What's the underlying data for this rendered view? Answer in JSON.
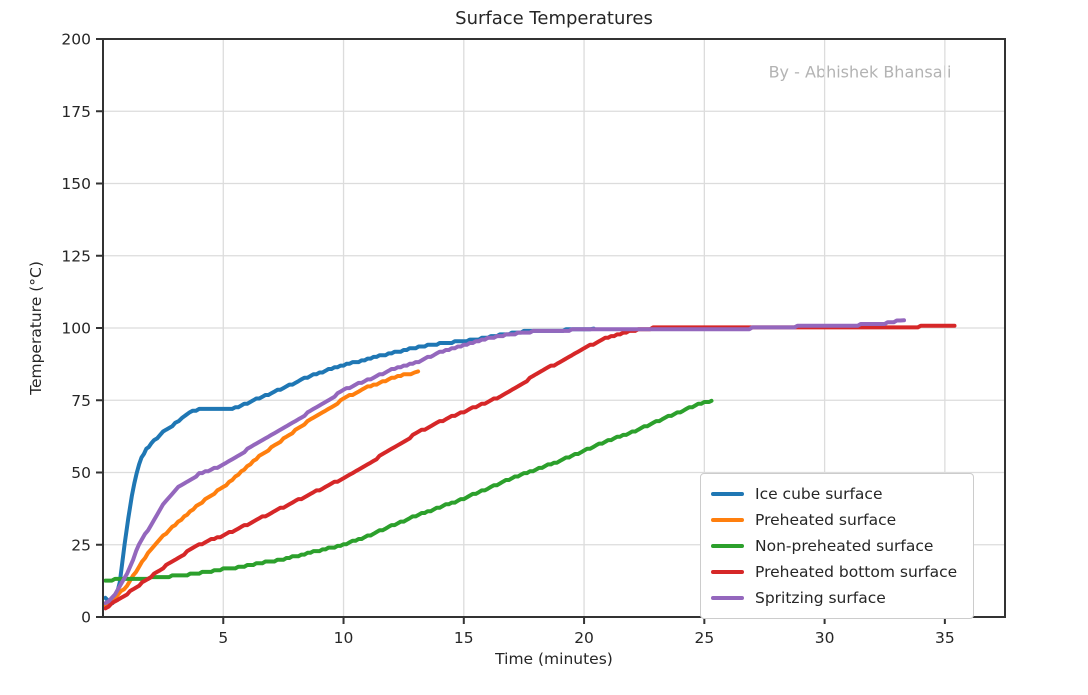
{
  "page_title": "Surface Temperatures",
  "colors": {
    "text": "#262626",
    "grid": "#dcdcdc",
    "spine": "#333333",
    "watermark": "#b3b3b3",
    "background": "#ffffff",
    "legend_border": "#cccccc"
  },
  "chart_data": {
    "type": "line",
    "title": "Surface Temperatures",
    "watermark": "By - Abhishek Bhansali",
    "xlabel": "Time (minutes)",
    "ylabel": "Temperature (°C)",
    "xlim": [
      0,
      37.5
    ],
    "ylim": [
      0,
      200
    ],
    "xticks": [
      5,
      10,
      15,
      20,
      25,
      30,
      35
    ],
    "yticks": [
      0,
      25,
      50,
      75,
      100,
      125,
      150,
      175,
      200
    ],
    "grid": true,
    "legend_position": "lower right",
    "series": [
      {
        "name": "Ice cube surface",
        "color": "#1f77b4",
        "points": [
          [
            0.1,
            6.8
          ],
          [
            0.25,
            5.2
          ],
          [
            0.4,
            5.0
          ],
          [
            0.55,
            7
          ],
          [
            0.7,
            12
          ],
          [
            0.9,
            25
          ],
          [
            1.05,
            34
          ],
          [
            1.2,
            42
          ],
          [
            1.4,
            50
          ],
          [
            1.6,
            55
          ],
          [
            1.8,
            58
          ],
          [
            2,
            60
          ],
          [
            2.5,
            64
          ],
          [
            3,
            67
          ],
          [
            3.3,
            69
          ],
          [
            3.6,
            71
          ],
          [
            4,
            71.8
          ],
          [
            4.5,
            72
          ],
          [
            5,
            72
          ],
          [
            5.5,
            72.3
          ],
          [
            6,
            74
          ],
          [
            6.5,
            75.8
          ],
          [
            7,
            77.5
          ],
          [
            7.5,
            79.2
          ],
          [
            8,
            81
          ],
          [
            8.5,
            83
          ],
          [
            9,
            84.5
          ],
          [
            9.5,
            86
          ],
          [
            10,
            87
          ],
          [
            10.5,
            88.2
          ],
          [
            11,
            89.3
          ],
          [
            11.5,
            90.3
          ],
          [
            12,
            91.3
          ],
          [
            12.5,
            92.3
          ],
          [
            13,
            93.2
          ],
          [
            13.5,
            94
          ],
          [
            14,
            94.6
          ],
          [
            14.5,
            95
          ],
          [
            15,
            95.4
          ],
          [
            15.5,
            96.1
          ],
          [
            16,
            96.8
          ],
          [
            16.5,
            97.5
          ],
          [
            17,
            98.2
          ],
          [
            17.5,
            98.7
          ],
          [
            18,
            99
          ],
          [
            18.5,
            99.1
          ],
          [
            19,
            99.2
          ],
          [
            19.5,
            99.4
          ],
          [
            20,
            99.5
          ],
          [
            20.4,
            99.8
          ]
        ]
      },
      {
        "name": "Preheated surface",
        "color": "#ff7f0e",
        "points": [
          [
            0.1,
            4
          ],
          [
            0.5,
            6.5
          ],
          [
            1,
            11
          ],
          [
            1.5,
            17.5
          ],
          [
            2,
            23.5
          ],
          [
            2.5,
            28
          ],
          [
            3,
            32
          ],
          [
            3.5,
            35.5
          ],
          [
            4,
            39
          ],
          [
            4.5,
            42
          ],
          [
            5,
            45
          ],
          [
            5.5,
            48.5
          ],
          [
            6,
            52
          ],
          [
            6.5,
            55.5
          ],
          [
            7,
            58.5
          ],
          [
            7.5,
            61.5
          ],
          [
            8,
            64.5
          ],
          [
            8.5,
            67.5
          ],
          [
            9,
            70
          ],
          [
            9.5,
            72.5
          ],
          [
            10,
            75.5
          ],
          [
            10.5,
            77.5
          ],
          [
            11,
            79.5
          ],
          [
            11.5,
            81
          ],
          [
            12,
            82.5
          ],
          [
            12.5,
            83.8
          ],
          [
            12.8,
            84.2
          ],
          [
            13.1,
            85
          ]
        ]
      },
      {
        "name": "Non-preheated surface",
        "color": "#2ca02c",
        "points": [
          [
            0.1,
            12.5
          ],
          [
            0.5,
            13
          ],
          [
            1,
            13
          ],
          [
            1.5,
            13.2
          ],
          [
            2,
            13.5
          ],
          [
            2.5,
            13.8
          ],
          [
            3,
            14.2
          ],
          [
            3.5,
            14.6
          ],
          [
            4,
            15.2
          ],
          [
            4.5,
            15.8
          ],
          [
            5,
            16.5
          ],
          [
            5.5,
            17
          ],
          [
            6,
            17.8
          ],
          [
            6.5,
            18.5
          ],
          [
            7,
            19.3
          ],
          [
            7.5,
            20
          ],
          [
            8,
            21
          ],
          [
            8.5,
            22
          ],
          [
            9,
            23
          ],
          [
            9.5,
            24
          ],
          [
            10,
            25
          ],
          [
            10.5,
            26.5
          ],
          [
            11,
            28
          ],
          [
            11.5,
            29.7
          ],
          [
            12,
            31.5
          ],
          [
            12.5,
            33.2
          ],
          [
            13,
            35
          ],
          [
            13.5,
            36.5
          ],
          [
            14,
            38
          ],
          [
            14.5,
            39.5
          ],
          [
            15,
            41
          ],
          [
            15.5,
            42.8
          ],
          [
            16,
            44.5
          ],
          [
            16.5,
            46.3
          ],
          [
            17,
            48
          ],
          [
            17.5,
            49.5
          ],
          [
            18,
            51
          ],
          [
            18.5,
            52.5
          ],
          [
            19,
            54
          ],
          [
            19.5,
            55.8
          ],
          [
            20,
            57.5
          ],
          [
            20.5,
            59.3
          ],
          [
            21,
            61
          ],
          [
            21.5,
            62.5
          ],
          [
            22,
            64
          ],
          [
            22.5,
            65.8
          ],
          [
            23,
            67.5
          ],
          [
            23.5,
            69.3
          ],
          [
            24,
            71
          ],
          [
            24.5,
            72.8
          ],
          [
            25,
            74.2
          ],
          [
            25.3,
            74.8
          ]
        ]
      },
      {
        "name": "Preheated bottom surface",
        "color": "#d62728",
        "points": [
          [
            0.1,
            3
          ],
          [
            0.5,
            5.5
          ],
          [
            1,
            8
          ],
          [
            1.5,
            11
          ],
          [
            2,
            14
          ],
          [
            2.5,
            17
          ],
          [
            3,
            20
          ],
          [
            3.5,
            22.5
          ],
          [
            4,
            25
          ],
          [
            4.5,
            26.8
          ],
          [
            5,
            28.2
          ],
          [
            5.5,
            30
          ],
          [
            6,
            32
          ],
          [
            6.5,
            34
          ],
          [
            7,
            36
          ],
          [
            7.5,
            38
          ],
          [
            8,
            40
          ],
          [
            8.5,
            42
          ],
          [
            9,
            44
          ],
          [
            9.5,
            46
          ],
          [
            10,
            48
          ],
          [
            10.5,
            50.5
          ],
          [
            11,
            53
          ],
          [
            11.5,
            55.5
          ],
          [
            12,
            58
          ],
          [
            12.5,
            60.5
          ],
          [
            13,
            63.5
          ],
          [
            13.5,
            65.5
          ],
          [
            14,
            67.5
          ],
          [
            14.5,
            69.3
          ],
          [
            15,
            71
          ],
          [
            15.5,
            72.8
          ],
          [
            16,
            74.5
          ],
          [
            16.5,
            76.3
          ],
          [
            17,
            78.5
          ],
          [
            17.5,
            81
          ],
          [
            18,
            84
          ],
          [
            18.5,
            86.3
          ],
          [
            19,
            88
          ],
          [
            19.5,
            90.5
          ],
          [
            20,
            92.8
          ],
          [
            20.5,
            95
          ],
          [
            21,
            96.8
          ],
          [
            21.5,
            98
          ],
          [
            22,
            99
          ],
          [
            22.5,
            99.6
          ],
          [
            23,
            100
          ],
          [
            24,
            100.1
          ],
          [
            25,
            100.2
          ],
          [
            26,
            100.1
          ],
          [
            27,
            100.2
          ],
          [
            28,
            100.2
          ],
          [
            29,
            100.3
          ],
          [
            30,
            100.3
          ],
          [
            31,
            100.3
          ],
          [
            32,
            100.4
          ],
          [
            33,
            100.4
          ],
          [
            34,
            100.5
          ],
          [
            35,
            100.6
          ],
          [
            35.4,
            100.8
          ]
        ]
      },
      {
        "name": "Spritzing surface",
        "color": "#9467bd",
        "points": [
          [
            0.1,
            4.5
          ],
          [
            0.5,
            8
          ],
          [
            1,
            15
          ],
          [
            1.5,
            25
          ],
          [
            2,
            32
          ],
          [
            2.5,
            39
          ],
          [
            3,
            44
          ],
          [
            3.5,
            47
          ],
          [
            4,
            49.5
          ],
          [
            4.5,
            51
          ],
          [
            5,
            52.5
          ],
          [
            5.5,
            55
          ],
          [
            6,
            58
          ],
          [
            6.5,
            60.5
          ],
          [
            7,
            63
          ],
          [
            7.5,
            65.5
          ],
          [
            8,
            68
          ],
          [
            8.5,
            70.5
          ],
          [
            9,
            73
          ],
          [
            9.5,
            75.8
          ],
          [
            10,
            78.5
          ],
          [
            10.5,
            80.3
          ],
          [
            11,
            82
          ],
          [
            11.5,
            83.8
          ],
          [
            12,
            85.5
          ],
          [
            12.5,
            86.8
          ],
          [
            13,
            88
          ],
          [
            13.5,
            89.8
          ],
          [
            14,
            91.5
          ],
          [
            14.5,
            92.8
          ],
          [
            15,
            94
          ],
          [
            15.5,
            95.3
          ],
          [
            16,
            96.3
          ],
          [
            16.5,
            97.2
          ],
          [
            17,
            97.8
          ],
          [
            17.5,
            98.4
          ],
          [
            18,
            98.8
          ],
          [
            18.5,
            99
          ],
          [
            19,
            99.2
          ],
          [
            19.5,
            99.3
          ],
          [
            20,
            99.5
          ],
          [
            21,
            99.6
          ],
          [
            22,
            99.6
          ],
          [
            23,
            99.7
          ],
          [
            24,
            99.7
          ],
          [
            25,
            99.8
          ],
          [
            26,
            99.8
          ],
          [
            27,
            99.9
          ],
          [
            28,
            100
          ],
          [
            29,
            100.6
          ],
          [
            30,
            101
          ],
          [
            31,
            101
          ],
          [
            32,
            101.2
          ],
          [
            32.5,
            101.6
          ],
          [
            33,
            102.3
          ],
          [
            33.3,
            102.7
          ]
        ]
      }
    ]
  }
}
